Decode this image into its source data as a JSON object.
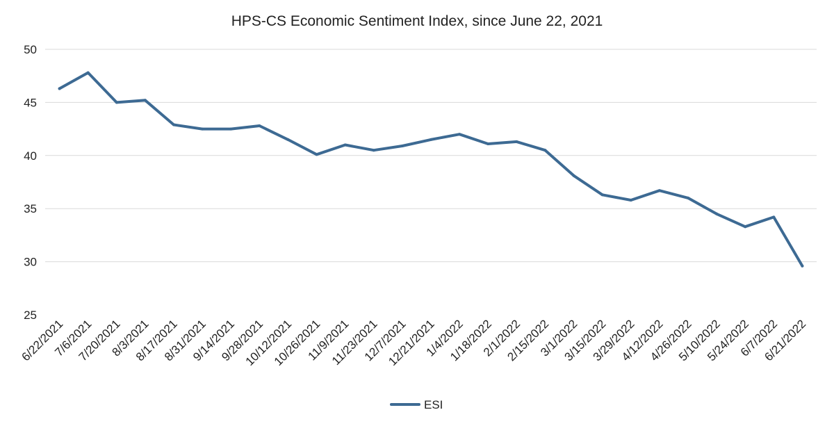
{
  "chart_data": {
    "type": "line",
    "title": "HPS-CS Economic Sentiment Index, since June 22, 2021",
    "xlabel": "",
    "ylabel": "",
    "ylim": [
      25,
      50
    ],
    "yticks": [
      25,
      30,
      35,
      40,
      45,
      50
    ],
    "grid": true,
    "legend_position": "bottom",
    "x": [
      "6/22/2021",
      "7/6/2021",
      "7/20/2021",
      "8/3/2021",
      "8/17/2021",
      "8/31/2021",
      "9/14/2021",
      "9/28/2021",
      "10/12/2021",
      "10/26/2021",
      "11/9/2021",
      "11/23/2021",
      "12/7/2021",
      "12/21/2021",
      "1/4/2022",
      "1/18/2022",
      "2/1/2022",
      "2/15/2022",
      "3/1/2022",
      "3/15/2022",
      "3/29/2022",
      "4/12/2022",
      "4/26/2022",
      "5/10/2022",
      "5/24/2022",
      "6/7/2022",
      "6/21/2022"
    ],
    "series": [
      {
        "name": "ESI",
        "color": "#3d6a93",
        "values": [
          46.3,
          47.8,
          45.0,
          45.2,
          42.9,
          42.5,
          42.5,
          42.8,
          41.5,
          40.1,
          41.0,
          40.5,
          40.9,
          41.5,
          42.0,
          41.1,
          41.3,
          40.5,
          38.1,
          36.3,
          35.8,
          36.7,
          36.0,
          34.5,
          33.3,
          34.2,
          29.6
        ]
      }
    ]
  }
}
